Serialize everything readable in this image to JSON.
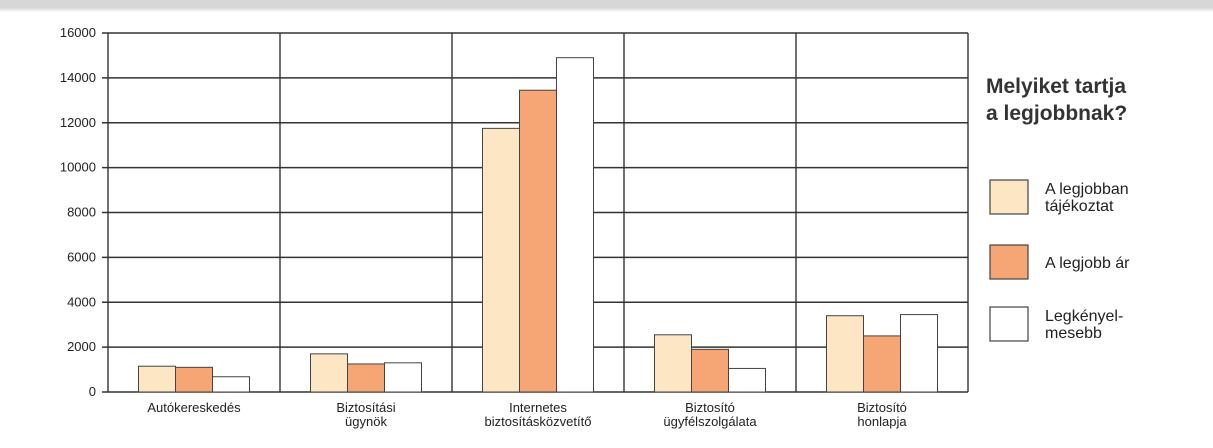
{
  "chart_data": {
    "type": "bar",
    "title": "Melyiket tartja a legjobbnak?",
    "title_lines": [
      "Melyiket tartja",
      "a legjobbnak?"
    ],
    "categories": [
      [
        "Autókereskedés"
      ],
      [
        "Biztosítási",
        "ügynök"
      ],
      [
        "Internetes",
        "biztosításközvetítő"
      ],
      [
        "Biztosító",
        "ügyfélszolgálata"
      ],
      [
        "Biztosító",
        "honlapja"
      ]
    ],
    "series": [
      {
        "name": "A legjobban tájékoztat",
        "name_lines": [
          "A legjobban",
          "tájékoztat"
        ],
        "color": "#fce6c4",
        "values": [
          1150,
          1700,
          11750,
          2550,
          3400
        ]
      },
      {
        "name": "A legjobb ár",
        "name_lines": [
          "A legjobb ár"
        ],
        "color": "#f6a674",
        "values": [
          1100,
          1250,
          13450,
          1900,
          2500
        ]
      },
      {
        "name": "Legkényel-mesebb",
        "name_lines": [
          "Legkényel-",
          "mesebb"
        ],
        "color": "#ffffff",
        "values": [
          680,
          1300,
          14900,
          1050,
          3450
        ]
      }
    ],
    "ylim": [
      0,
      16000
    ],
    "yticks": [
      0,
      2000,
      4000,
      6000,
      8000,
      10000,
      12000,
      14000,
      16000
    ],
    "grid": true,
    "legend_position": "right"
  }
}
